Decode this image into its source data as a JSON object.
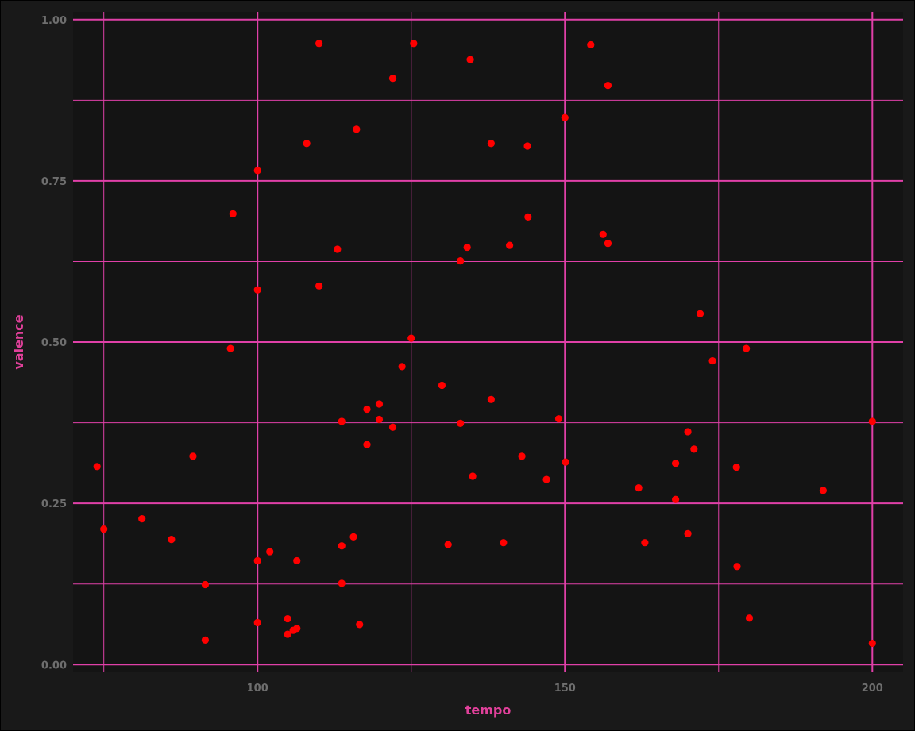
{
  "chart_data": {
    "type": "scatter",
    "xlabel": "tempo",
    "ylabel": "valence",
    "xlim": [
      70,
      205
    ],
    "ylim": [
      -0.012,
      1.012
    ],
    "x_ticks": [
      100,
      150,
      200
    ],
    "x_tick_labels": [
      "100",
      "150",
      "200"
    ],
    "x_minor_ticks": [
      75,
      125,
      175
    ],
    "y_ticks": [
      0,
      0.25,
      0.5,
      0.75,
      1.0
    ],
    "y_tick_labels": [
      "0.00",
      "0.25",
      "0.50",
      "0.75",
      "1.00"
    ],
    "y_minor_ticks": [
      0.125,
      0.375,
      0.625,
      0.875
    ],
    "grid": true,
    "colors": {
      "point": "#ff0000",
      "panel": "#141414",
      "background": "#191919",
      "grid": "#e040a8",
      "axis_title": "#e0409a",
      "tick_label": "#6e6e6e"
    },
    "points": [
      {
        "x": 73.9,
        "y": 0.307
      },
      {
        "x": 75.0,
        "y": 0.21
      },
      {
        "x": 81.2,
        "y": 0.226
      },
      {
        "x": 86.0,
        "y": 0.194
      },
      {
        "x": 89.5,
        "y": 0.323
      },
      {
        "x": 91.5,
        "y": 0.124
      },
      {
        "x": 91.5,
        "y": 0.038
      },
      {
        "x": 95.6,
        "y": 0.49
      },
      {
        "x": 96.0,
        "y": 0.699
      },
      {
        "x": 100.0,
        "y": 0.766
      },
      {
        "x": 100.0,
        "y": 0.581
      },
      {
        "x": 100.0,
        "y": 0.161
      },
      {
        "x": 100.0,
        "y": 0.065
      },
      {
        "x": 102.0,
        "y": 0.175
      },
      {
        "x": 104.9,
        "y": 0.071
      },
      {
        "x": 104.9,
        "y": 0.047
      },
      {
        "x": 105.8,
        "y": 0.053
      },
      {
        "x": 106.4,
        "y": 0.056
      },
      {
        "x": 106.4,
        "y": 0.161
      },
      {
        "x": 108.0,
        "y": 0.808
      },
      {
        "x": 110.0,
        "y": 0.963
      },
      {
        "x": 110.0,
        "y": 0.587
      },
      {
        "x": 113.0,
        "y": 0.644
      },
      {
        "x": 113.7,
        "y": 0.377
      },
      {
        "x": 113.7,
        "y": 0.184
      },
      {
        "x": 113.7,
        "y": 0.126
      },
      {
        "x": 115.6,
        "y": 0.198
      },
      {
        "x": 116.1,
        "y": 0.83
      },
      {
        "x": 116.6,
        "y": 0.062
      },
      {
        "x": 117.8,
        "y": 0.396
      },
      {
        "x": 117.8,
        "y": 0.341
      },
      {
        "x": 119.8,
        "y": 0.404
      },
      {
        "x": 119.8,
        "y": 0.38
      },
      {
        "x": 122.0,
        "y": 0.909
      },
      {
        "x": 122.0,
        "y": 0.368
      },
      {
        "x": 123.5,
        "y": 0.462
      },
      {
        "x": 125.0,
        "y": 0.506
      },
      {
        "x": 125.4,
        "y": 0.963
      },
      {
        "x": 130.0,
        "y": 0.433
      },
      {
        "x": 131.0,
        "y": 0.186
      },
      {
        "x": 133.0,
        "y": 0.626
      },
      {
        "x": 133.0,
        "y": 0.374
      },
      {
        "x": 134.1,
        "y": 0.647
      },
      {
        "x": 134.6,
        "y": 0.938
      },
      {
        "x": 135.0,
        "y": 0.292
      },
      {
        "x": 138.0,
        "y": 0.808
      },
      {
        "x": 138.0,
        "y": 0.411
      },
      {
        "x": 140.0,
        "y": 0.189
      },
      {
        "x": 141.0,
        "y": 0.65
      },
      {
        "x": 143.0,
        "y": 0.323
      },
      {
        "x": 143.9,
        "y": 0.804
      },
      {
        "x": 144.0,
        "y": 0.694
      },
      {
        "x": 147.0,
        "y": 0.287
      },
      {
        "x": 149.0,
        "y": 0.381
      },
      {
        "x": 150.0,
        "y": 0.848
      },
      {
        "x": 150.1,
        "y": 0.314
      },
      {
        "x": 154.2,
        "y": 0.961
      },
      {
        "x": 156.2,
        "y": 0.667
      },
      {
        "x": 157.0,
        "y": 0.898
      },
      {
        "x": 157.0,
        "y": 0.653
      },
      {
        "x": 162.0,
        "y": 0.274
      },
      {
        "x": 163.0,
        "y": 0.189
      },
      {
        "x": 168.0,
        "y": 0.312
      },
      {
        "x": 168.0,
        "y": 0.256
      },
      {
        "x": 170.0,
        "y": 0.361
      },
      {
        "x": 170.0,
        "y": 0.203
      },
      {
        "x": 171.0,
        "y": 0.334
      },
      {
        "x": 172.0,
        "y": 0.544
      },
      {
        "x": 174.0,
        "y": 0.471
      },
      {
        "x": 177.9,
        "y": 0.306
      },
      {
        "x": 178.0,
        "y": 0.152
      },
      {
        "x": 179.5,
        "y": 0.49
      },
      {
        "x": 180.0,
        "y": 0.072
      },
      {
        "x": 192.0,
        "y": 0.27
      },
      {
        "x": 200.0,
        "y": 0.377
      },
      {
        "x": 200.0,
        "y": 0.033
      }
    ]
  }
}
